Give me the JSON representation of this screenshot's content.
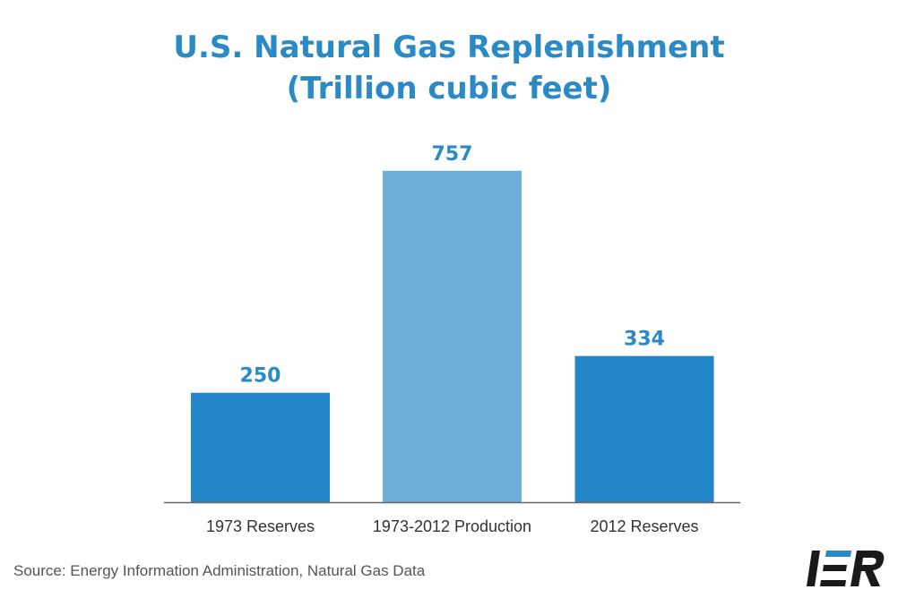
{
  "title_line1": "U.S. Natural Gas Replenishment",
  "title_line2": "(Trillion cubic feet)",
  "source": "Source: Energy Information Administration, Natural Gas Data",
  "logo_text": "IER",
  "chart_data": {
    "type": "bar",
    "title": "U.S. Natural Gas Replenishment (Trillion cubic feet)",
    "categories": [
      "1973 Reserves",
      "1973-2012 Production",
      "2012 Reserves"
    ],
    "values": [
      250,
      757,
      334
    ],
    "data_labels": [
      "250",
      "757",
      "334"
    ],
    "colors": [
      "#2386c8",
      "#6daed9",
      "#2386c8"
    ],
    "label_color": "#2a8ac6",
    "ylim": [
      0,
      820
    ],
    "grid": false,
    "legend": "none",
    "xlabel": "",
    "ylabel": ""
  }
}
